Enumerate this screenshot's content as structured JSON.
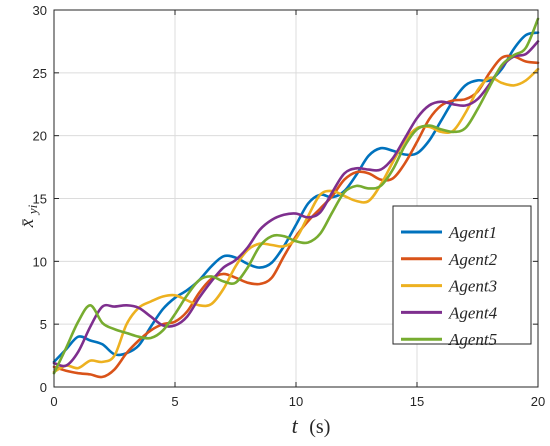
{
  "chart_data": {
    "type": "line",
    "xlabel": {
      "var": "t",
      "unit": "(s)"
    },
    "ylabel": {
      "var": "x̄",
      "sub": "yi"
    },
    "xlim": [
      0,
      20
    ],
    "ylim": [
      0,
      30
    ],
    "xticks": [
      0,
      5,
      10,
      15,
      20
    ],
    "yticks": [
      0,
      5,
      10,
      15,
      20,
      25,
      30
    ],
    "grid": true,
    "legend_position": "right",
    "x": [
      0,
      0.5,
      1,
      1.5,
      2,
      2.5,
      3,
      3.5,
      4,
      4.5,
      5,
      5.5,
      6,
      6.5,
      7,
      7.5,
      8,
      8.5,
      9,
      9.5,
      10,
      10.5,
      11,
      11.5,
      12,
      12.5,
      13,
      13.5,
      14,
      14.5,
      15,
      15.5,
      16,
      16.5,
      17,
      17.5,
      18,
      18.5,
      19,
      19.5,
      20
    ],
    "series": [
      {
        "name": "Agent1",
        "color": "#0072BD",
        "values": [
          2.0,
          3.0,
          4.0,
          3.7,
          3.4,
          2.6,
          2.7,
          3.3,
          4.8,
          6.2,
          7.1,
          7.7,
          8.5,
          9.6,
          10.4,
          10.3,
          9.8,
          9.5,
          9.9,
          11.2,
          12.9,
          14.6,
          15.3,
          15.1,
          15.6,
          16.9,
          18.4,
          19.0,
          18.8,
          18.5,
          18.6,
          19.6,
          21.2,
          22.8,
          24.0,
          24.4,
          24.4,
          25.3,
          26.9,
          28.0,
          28.2
        ]
      },
      {
        "name": "Agent2",
        "color": "#D95319",
        "values": [
          1.6,
          1.3,
          1.1,
          1.0,
          0.8,
          1.4,
          2.7,
          3.7,
          4.5,
          5.0,
          5.2,
          6.0,
          7.5,
          8.6,
          9.0,
          8.7,
          8.3,
          8.2,
          8.7,
          10.4,
          12.0,
          13.2,
          14.2,
          15.2,
          16.5,
          17.1,
          17.0,
          16.5,
          16.6,
          17.8,
          19.5,
          21.3,
          22.4,
          22.8,
          22.9,
          23.5,
          25.0,
          26.2,
          26.3,
          25.9,
          25.8
        ]
      },
      {
        "name": "Agent3",
        "color": "#EDB120",
        "values": [
          1.2,
          1.7,
          1.5,
          2.1,
          2.0,
          2.5,
          5.0,
          6.3,
          6.8,
          7.2,
          7.3,
          6.9,
          6.5,
          6.6,
          7.8,
          9.6,
          10.9,
          11.4,
          11.3,
          11.2,
          11.8,
          13.6,
          15.3,
          15.6,
          15.2,
          14.8,
          14.8,
          16.1,
          17.9,
          19.6,
          20.6,
          20.7,
          20.3,
          20.4,
          21.8,
          23.6,
          24.6,
          24.2,
          24.0,
          24.4,
          25.3
        ]
      },
      {
        "name": "Agent4",
        "color": "#7E2F8E",
        "values": [
          1.9,
          1.7,
          2.8,
          4.8,
          6.4,
          6.4,
          6.5,
          6.3,
          5.6,
          4.9,
          4.9,
          5.6,
          7.1,
          8.4,
          9.5,
          10.1,
          11.1,
          12.5,
          13.3,
          13.7,
          13.8,
          13.5,
          13.9,
          15.5,
          17.0,
          17.4,
          17.3,
          17.3,
          18.2,
          19.8,
          21.4,
          22.4,
          22.7,
          22.5,
          22.4,
          22.9,
          24.1,
          25.5,
          26.3,
          26.5,
          27.5
        ]
      },
      {
        "name": "Agent5",
        "color": "#77AC30",
        "values": [
          1.1,
          3.1,
          5.2,
          6.5,
          5.1,
          4.6,
          4.3,
          4.0,
          3.9,
          4.5,
          5.8,
          7.3,
          8.5,
          8.8,
          8.4,
          8.3,
          9.5,
          11.2,
          12.0,
          12.0,
          11.6,
          11.5,
          12.2,
          13.9,
          15.5,
          16.0,
          15.8,
          16.0,
          17.3,
          19.2,
          20.5,
          20.8,
          20.5,
          20.3,
          20.6,
          22.1,
          23.9,
          25.6,
          26.4,
          27.0,
          29.3
        ]
      }
    ]
  }
}
